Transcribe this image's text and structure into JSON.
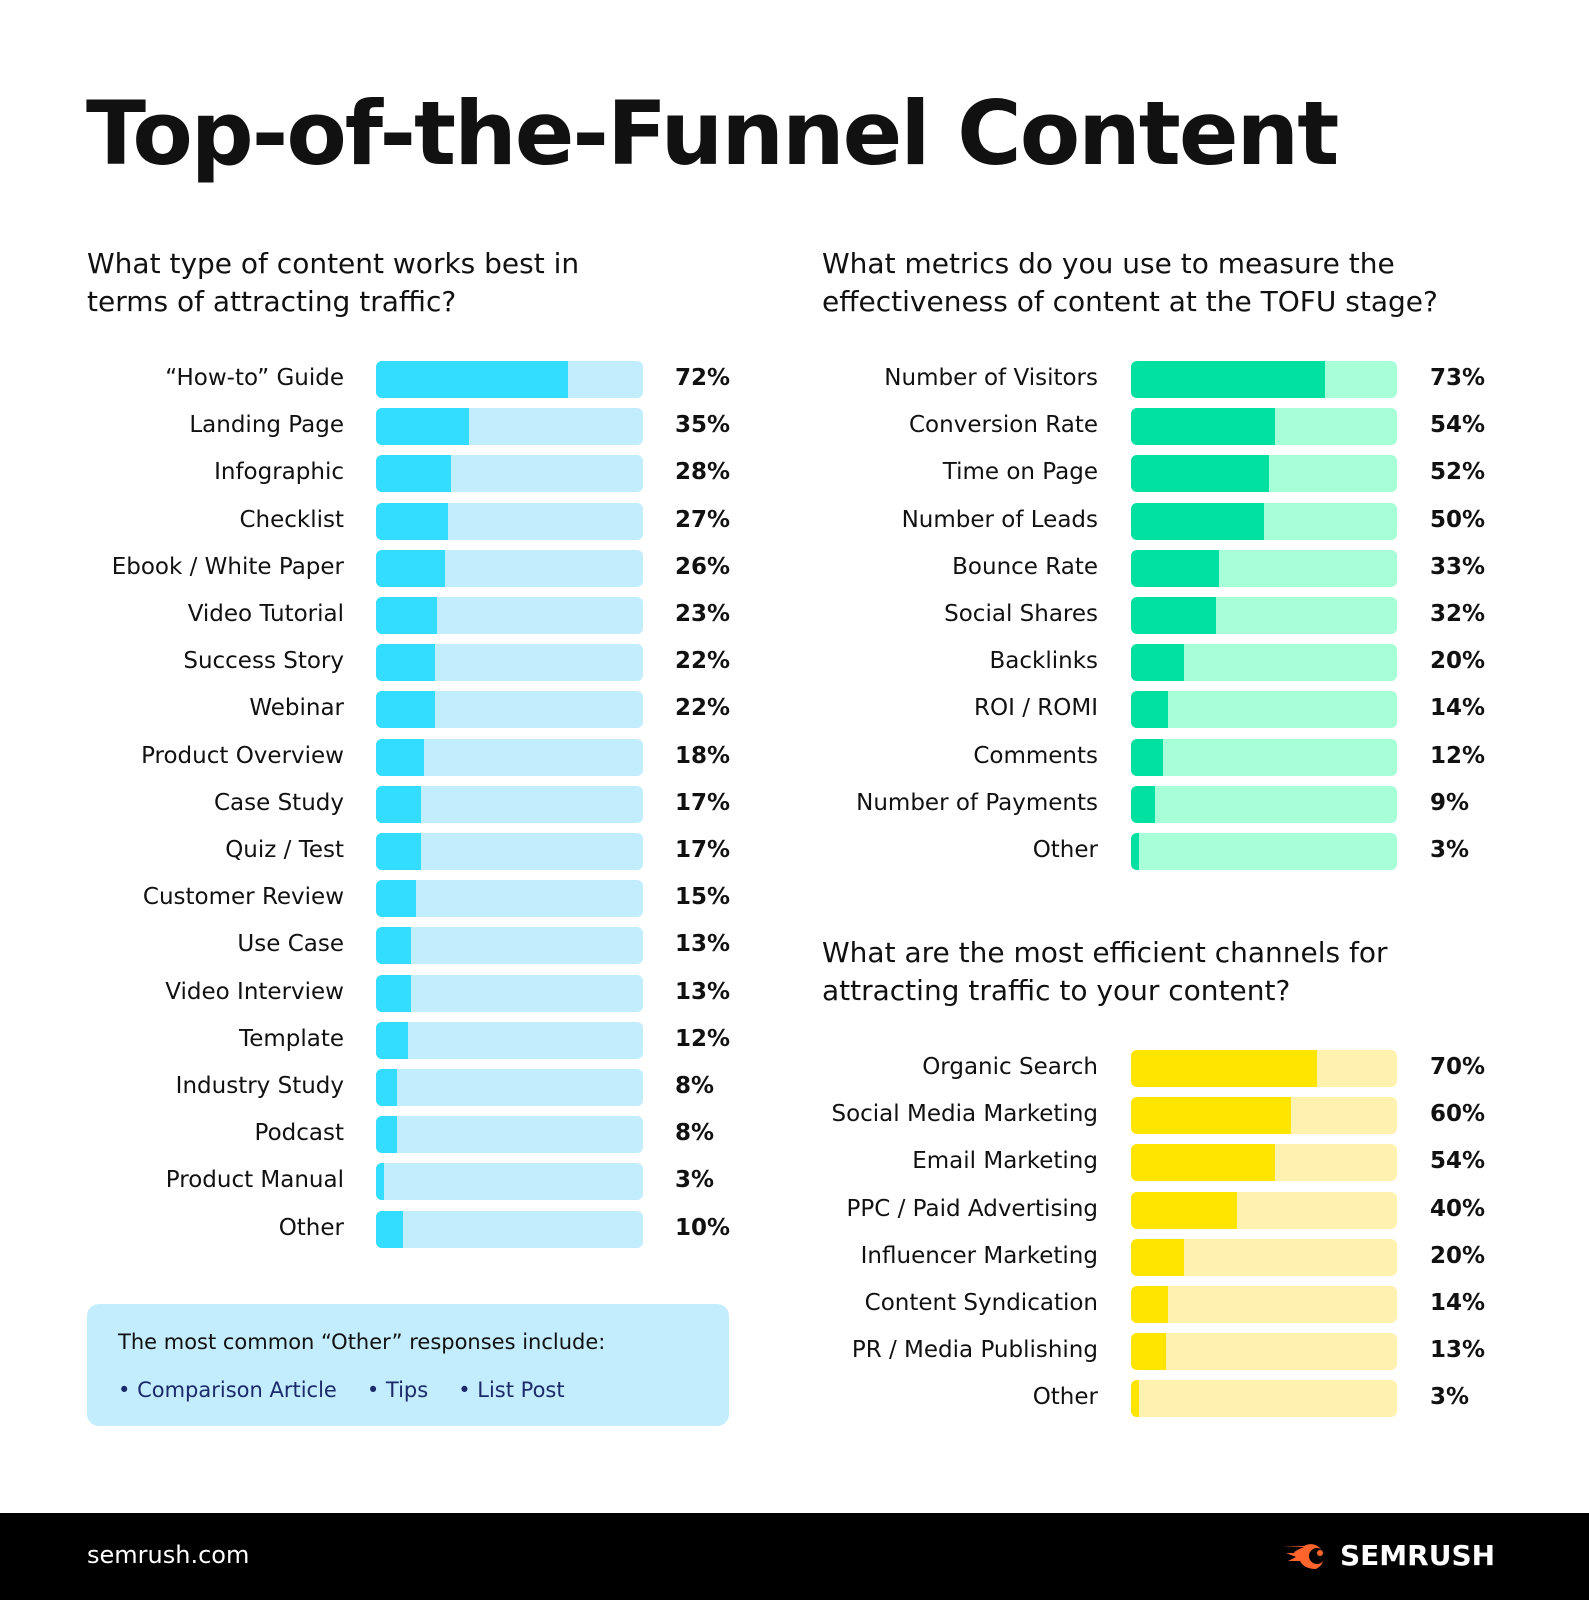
{
  "title": "Top-of-the-Funnel Content",
  "chart_data": [
    {
      "type": "bar",
      "orientation": "horizontal",
      "title": "What type of content works best in terms of attracting traffic?",
      "xlim": [
        0,
        100
      ],
      "unit": "%",
      "colors": {
        "fill": "#33ddff",
        "track": "#c2edfc"
      },
      "categories": [
        "“How-to” Guide",
        "Landing Page",
        "Infographic",
        "Checklist",
        "Ebook / White Paper",
        "Video Tutorial",
        "Success Story",
        "Webinar",
        "Product Overview",
        "Case Study",
        "Quiz / Test",
        "Customer Review",
        "Use Case",
        "Video Interview",
        "Template",
        "Industry Study",
        "Podcast",
        "Product Manual",
        "Other"
      ],
      "values": [
        72,
        35,
        28,
        27,
        26,
        23,
        22,
        22,
        18,
        17,
        17,
        15,
        13,
        13,
        12,
        8,
        8,
        3,
        10
      ]
    },
    {
      "type": "bar",
      "orientation": "horizontal",
      "title": "What metrics do you use to measure the effectiveness of content at the TOFU stage?",
      "xlim": [
        0,
        100
      ],
      "unit": "%",
      "colors": {
        "fill": "#00e0a0",
        "track": "#a6ffd6"
      },
      "categories": [
        "Number of Visitors",
        "Conversion Rate",
        "Time on Page",
        "Number of Leads",
        "Bounce Rate",
        "Social Shares",
        "Backlinks",
        "ROI / ROMI",
        "Comments",
        "Number of Payments",
        "Other"
      ],
      "values": [
        73,
        54,
        52,
        50,
        33,
        32,
        20,
        14,
        12,
        9,
        3
      ]
    },
    {
      "type": "bar",
      "orientation": "horizontal",
      "title": "What are the most efficient channels for attracting traffic to your content?",
      "xlim": [
        0,
        100
      ],
      "unit": "%",
      "colors": {
        "fill": "#ffe500",
        "track": "#fff2b0"
      },
      "categories": [
        "Organic Search",
        "Social Media Marketing",
        "Email Marketing",
        "PPC / Paid Advertising",
        "Influencer Marketing",
        "Content Syndication",
        "PR / Media Publishing",
        "Other"
      ],
      "values": [
        70,
        60,
        54,
        40,
        20,
        14,
        13,
        3
      ]
    }
  ],
  "note": {
    "title": "The most common “Other” responses include:",
    "items": [
      "Comparison Article",
      "Tips",
      "List Post"
    ]
  },
  "footer": {
    "site": "semrush.com",
    "brand": "SEMRUSH",
    "brand_color": "#ff642d"
  }
}
